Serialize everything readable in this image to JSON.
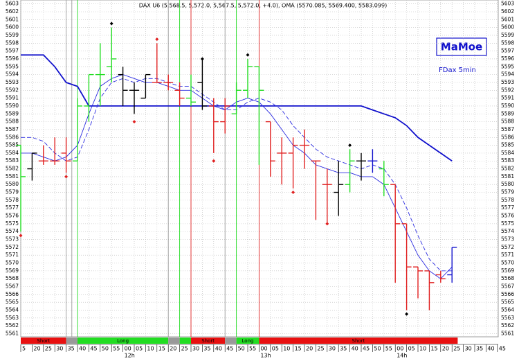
{
  "chart_data": {
    "type": "ohlc",
    "title": "DAX U6 (5,568.5, 5,572.0, 5,567.5, 5,572.0, +4.0), OMA (5570.085, 5569.400, 5583.099)",
    "badge": "MaMoe",
    "subtitle": "FDax 5min",
    "categories": [
      "5",
      "20",
      "25",
      "30",
      "35",
      "40",
      "45",
      "50",
      "55",
      "00",
      "05",
      "10",
      "15",
      "20",
      "25",
      "30",
      "35",
      "40",
      "45",
      "50",
      "55",
      "00",
      "05",
      "10",
      "15",
      "20",
      "25",
      "30",
      "35",
      "40",
      "45",
      "50",
      "55",
      "00",
      "05",
      "10",
      "15",
      "20",
      "25",
      "30",
      "35",
      "40",
      "45"
    ],
    "hour_labels": [
      {
        "text": "12h",
        "at": 9
      },
      {
        "text": "13h",
        "at": 21
      },
      {
        "text": "14h",
        "at": 33
      }
    ],
    "ylim": [
      5560.6,
      5603.5
    ],
    "yticks": [
      5561,
      5562,
      5563,
      5564,
      5565,
      5566,
      5567,
      5568,
      5569,
      5570,
      5571,
      5572,
      5573,
      5574,
      5575,
      5576,
      5577,
      5578,
      5579,
      5580,
      5581,
      5582,
      5583,
      5584,
      5585,
      5586,
      5587,
      5588,
      5589,
      5590,
      5591,
      5592,
      5593,
      5594,
      5595,
      5596,
      5597,
      5598,
      5599,
      5600,
      5601,
      5602,
      5603
    ],
    "grid": true,
    "bars": {
      "open": [
        5585,
        5582,
        5583,
        5583,
        5584,
        5583,
        5590,
        5594,
        5595,
        5594,
        5592,
        5591,
        5593,
        5593,
        5592,
        5591,
        5593,
        5590,
        5588,
        5589,
        5592,
        5595,
        5588,
        5584,
        5584,
        5585,
        5583,
        5580,
        5579,
        5580,
        5583,
        5583,
        5582,
        5580,
        5575,
        5569.5,
        5569,
        5568.5,
        5568.5
      ],
      "high": [
        5585,
        5584,
        5585,
        5586,
        5586,
        5591,
        5594,
        5598,
        5600,
        5595,
        5593,
        5594,
        5598,
        5594,
        5593,
        5594,
        5596,
        5591,
        5591,
        5593,
        5596,
        5595,
        5588,
        5586,
        5586,
        5587,
        5583,
        5582,
        5583,
        5584.5,
        5584,
        5584.5,
        5583,
        5580,
        5575,
        5569.5,
        5569,
        5569,
        5572
      ],
      "low": [
        5574,
        5580.5,
        5582.5,
        5582.5,
        5581.5,
        5583,
        5588,
        5590,
        5593,
        5590,
        5589,
        5591,
        5593,
        5592,
        5590,
        5590,
        5589.5,
        5584,
        5586.5,
        5589,
        5591,
        5582.5,
        5581,
        5580,
        5579.5,
        5582,
        5575.5,
        5575,
        5576,
        5579,
        5580.5,
        5581.5,
        5578.5,
        5567.5,
        5564,
        5565.5,
        5564,
        5567.5,
        5567.5
      ],
      "close": [
        5581,
        5584,
        5583,
        5583,
        5583,
        5590,
        5594,
        5594,
        5596,
        5592,
        5592,
        5594,
        5593,
        5593,
        5591,
        5590.5,
        5590,
        5588,
        5590,
        5592,
        5595,
        5592,
        5583,
        5584,
        5585,
        5585,
        5583,
        5580,
        5580,
        5583,
        5583,
        5583,
        5580,
        5575,
        5569.5,
        5569,
        5567.5,
        5568,
        5572
      ],
      "colors": [
        "#22dd22",
        "#000000",
        "#e02020",
        "#e02020",
        "#e02020",
        "#22dd22",
        "#22dd22",
        "#22dd22",
        "#22dd22",
        "#000000",
        "#000000",
        "#000000",
        "#e02020",
        "#e02020",
        "#e02020",
        "#22dd22",
        "#000000",
        "#e02020",
        "#e02020",
        "#22dd22",
        "#22dd22",
        "#22dd22",
        "#e02020",
        "#e02020",
        "#e02020",
        "#e02020",
        "#e02020",
        "#e02020",
        "#000000",
        "#22dd22",
        "#000000",
        "#1010cc",
        "#22dd22",
        "#e02020",
        "#e02020",
        "#e02020",
        "#e02020",
        "#e02020",
        "#1010cc"
      ]
    },
    "series": [
      {
        "color": "#1010cc",
        "width": 1.8,
        "dash": false,
        "values": [
          5596.5,
          5596.5,
          5596.5,
          5595,
          5593,
          5592.5,
          5590,
          5590,
          5590,
          5590,
          5590,
          5590,
          5590,
          5590,
          5590,
          5590,
          5590,
          5590,
          5590,
          5590,
          5590,
          5590,
          5590,
          5590,
          5590,
          5590,
          5590,
          5590,
          5590,
          5590,
          5590,
          5589.5,
          5589,
          5588.5,
          5587.5,
          5586,
          5585,
          5584,
          5583,
          null,
          null,
          null,
          null
        ]
      },
      {
        "color": "#2a2ae0",
        "width": 0.9,
        "dash": false,
        "values": [
          5584,
          5584,
          5583.5,
          5583,
          5583.5,
          5585,
          5589,
          5592.5,
          5593.5,
          5594,
          5593.5,
          5593,
          5593,
          5592.5,
          5592,
          5592,
          5591,
          5590,
          5589.5,
          5590.5,
          5591,
          5590.5,
          5589,
          5587,
          5585,
          5584,
          5582.5,
          5582,
          5581.5,
          5581.5,
          5581,
          5581,
          5580,
          5577,
          5574,
          5571,
          5569,
          5568,
          5569.5,
          null,
          null,
          null,
          null
        ]
      },
      {
        "color": "#2a2ae0",
        "width": 0.9,
        "dash": true,
        "values": [
          5586,
          5586,
          5585.5,
          5584,
          5583,
          5583.5,
          5587,
          5591,
          5593,
          5593.5,
          5593,
          5593.5,
          5593.5,
          5593,
          5592.5,
          5592.5,
          5591.5,
          5590.5,
          5589.5,
          5589.5,
          5590.5,
          5591,
          5590.5,
          5589.5,
          5587.5,
          5586,
          5584.5,
          5583.5,
          5583,
          5582.5,
          5582,
          5582.5,
          5582,
          5580,
          5577,
          5573.5,
          5570.5,
          5569,
          5569,
          null,
          null,
          null,
          null
        ]
      }
    ],
    "markers": [
      {
        "at": 0,
        "value": 5573.5,
        "color": "#e02020"
      },
      {
        "at": 4,
        "value": 5581,
        "color": "#e02020"
      },
      {
        "at": 8,
        "value": 5600.5,
        "color": "#000000"
      },
      {
        "at": 10,
        "value": 5588,
        "color": "#e02020"
      },
      {
        "at": 12,
        "value": 5598.5,
        "color": "#e02020"
      },
      {
        "at": 16,
        "value": 5596,
        "color": "#000000"
      },
      {
        "at": 17,
        "value": 5583,
        "color": "#e02020"
      },
      {
        "at": 20,
        "value": 5596.5,
        "color": "#000000"
      },
      {
        "at": 24,
        "value": 5579,
        "color": "#e02020"
      },
      {
        "at": 27,
        "value": 5575,
        "color": "#e02020"
      },
      {
        "at": 29,
        "value": 5585,
        "color": "#000000"
      },
      {
        "at": 34,
        "value": 5563.5,
        "color": "#000000"
      }
    ],
    "vlines": [
      {
        "at": 4,
        "color": "#999999"
      },
      {
        "at": 4.5,
        "color": "#999999"
      },
      {
        "at": 5,
        "color": "#22dd22"
      },
      {
        "at": 13,
        "color": "#999999"
      },
      {
        "at": 14,
        "color": "#22dd22"
      },
      {
        "at": 15,
        "color": "#e02020"
      },
      {
        "at": 18,
        "color": "#999999"
      },
      {
        "at": 19,
        "color": "#22dd22"
      },
      {
        "at": 21,
        "color": "#e02020"
      }
    ],
    "signals": [
      {
        "label": "Short",
        "color": "#e81010",
        "from": 0,
        "to": 4
      },
      {
        "color": "#999999",
        "from": 4,
        "to": 5
      },
      {
        "label": "Long",
        "color": "#22dd22",
        "from": 5,
        "to": 13
      },
      {
        "color": "#999999",
        "from": 13,
        "to": 14
      },
      {
        "color": "#22dd22",
        "from": 14,
        "to": 15
      },
      {
        "label": "Short",
        "color": "#e81010",
        "from": 15,
        "to": 18
      },
      {
        "color": "#999999",
        "from": 18,
        "to": 19
      },
      {
        "label": "Long",
        "color": "#22dd22",
        "from": 19,
        "to": 21
      },
      {
        "label": "Short",
        "color": "#e81010",
        "from": 21,
        "to": 38.5
      }
    ]
  }
}
